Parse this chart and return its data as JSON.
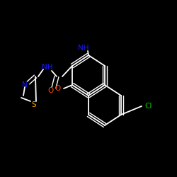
{
  "background_color": "#000000",
  "bond_color": "#ffffff",
  "atom_colors": {
    "N": "#1a1aff",
    "NH": "#1a1aff",
    "O": "#ff4500",
    "S": "#ffa500",
    "Cl": "#00cc00"
  },
  "figsize": [
    2.5,
    2.5
  ],
  "dpi": 100
}
